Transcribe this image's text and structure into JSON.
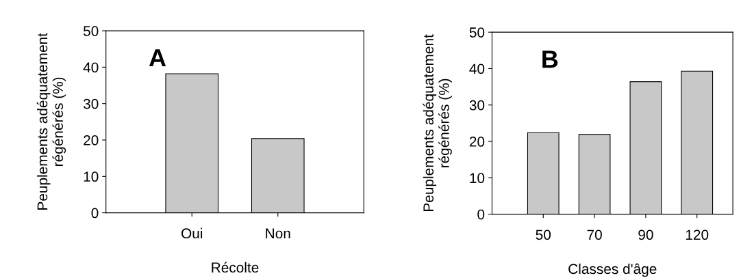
{
  "chart_data": [
    {
      "type": "bar",
      "categories": [
        "Oui",
        "Non"
      ],
      "values": [
        38.2,
        20.4
      ],
      "color": "#c8c8c8",
      "ylim": [
        0,
        50
      ],
      "yticks": [
        0,
        10,
        20,
        30,
        40,
        50
      ],
      "xlabel": "Récolte",
      "ylabel": "Peuplements adéquatement\nrégénérés (%)",
      "annotations": [
        "A"
      ],
      "grid": false,
      "legend": false
    },
    {
      "type": "bar",
      "categories": [
        "50",
        "70",
        "90",
        "120"
      ],
      "values": [
        22.4,
        21.9,
        36.4,
        39.3
      ],
      "color": "#c8c8c8",
      "ylim": [
        0,
        50
      ],
      "yticks": [
        0,
        10,
        20,
        30,
        40,
        50
      ],
      "xlabel": "Classes d'âge",
      "ylabel": "Peuplements adéquatement\nrégénérés (%)",
      "annotations": [
        "B"
      ],
      "grid": false,
      "legend": false
    }
  ]
}
